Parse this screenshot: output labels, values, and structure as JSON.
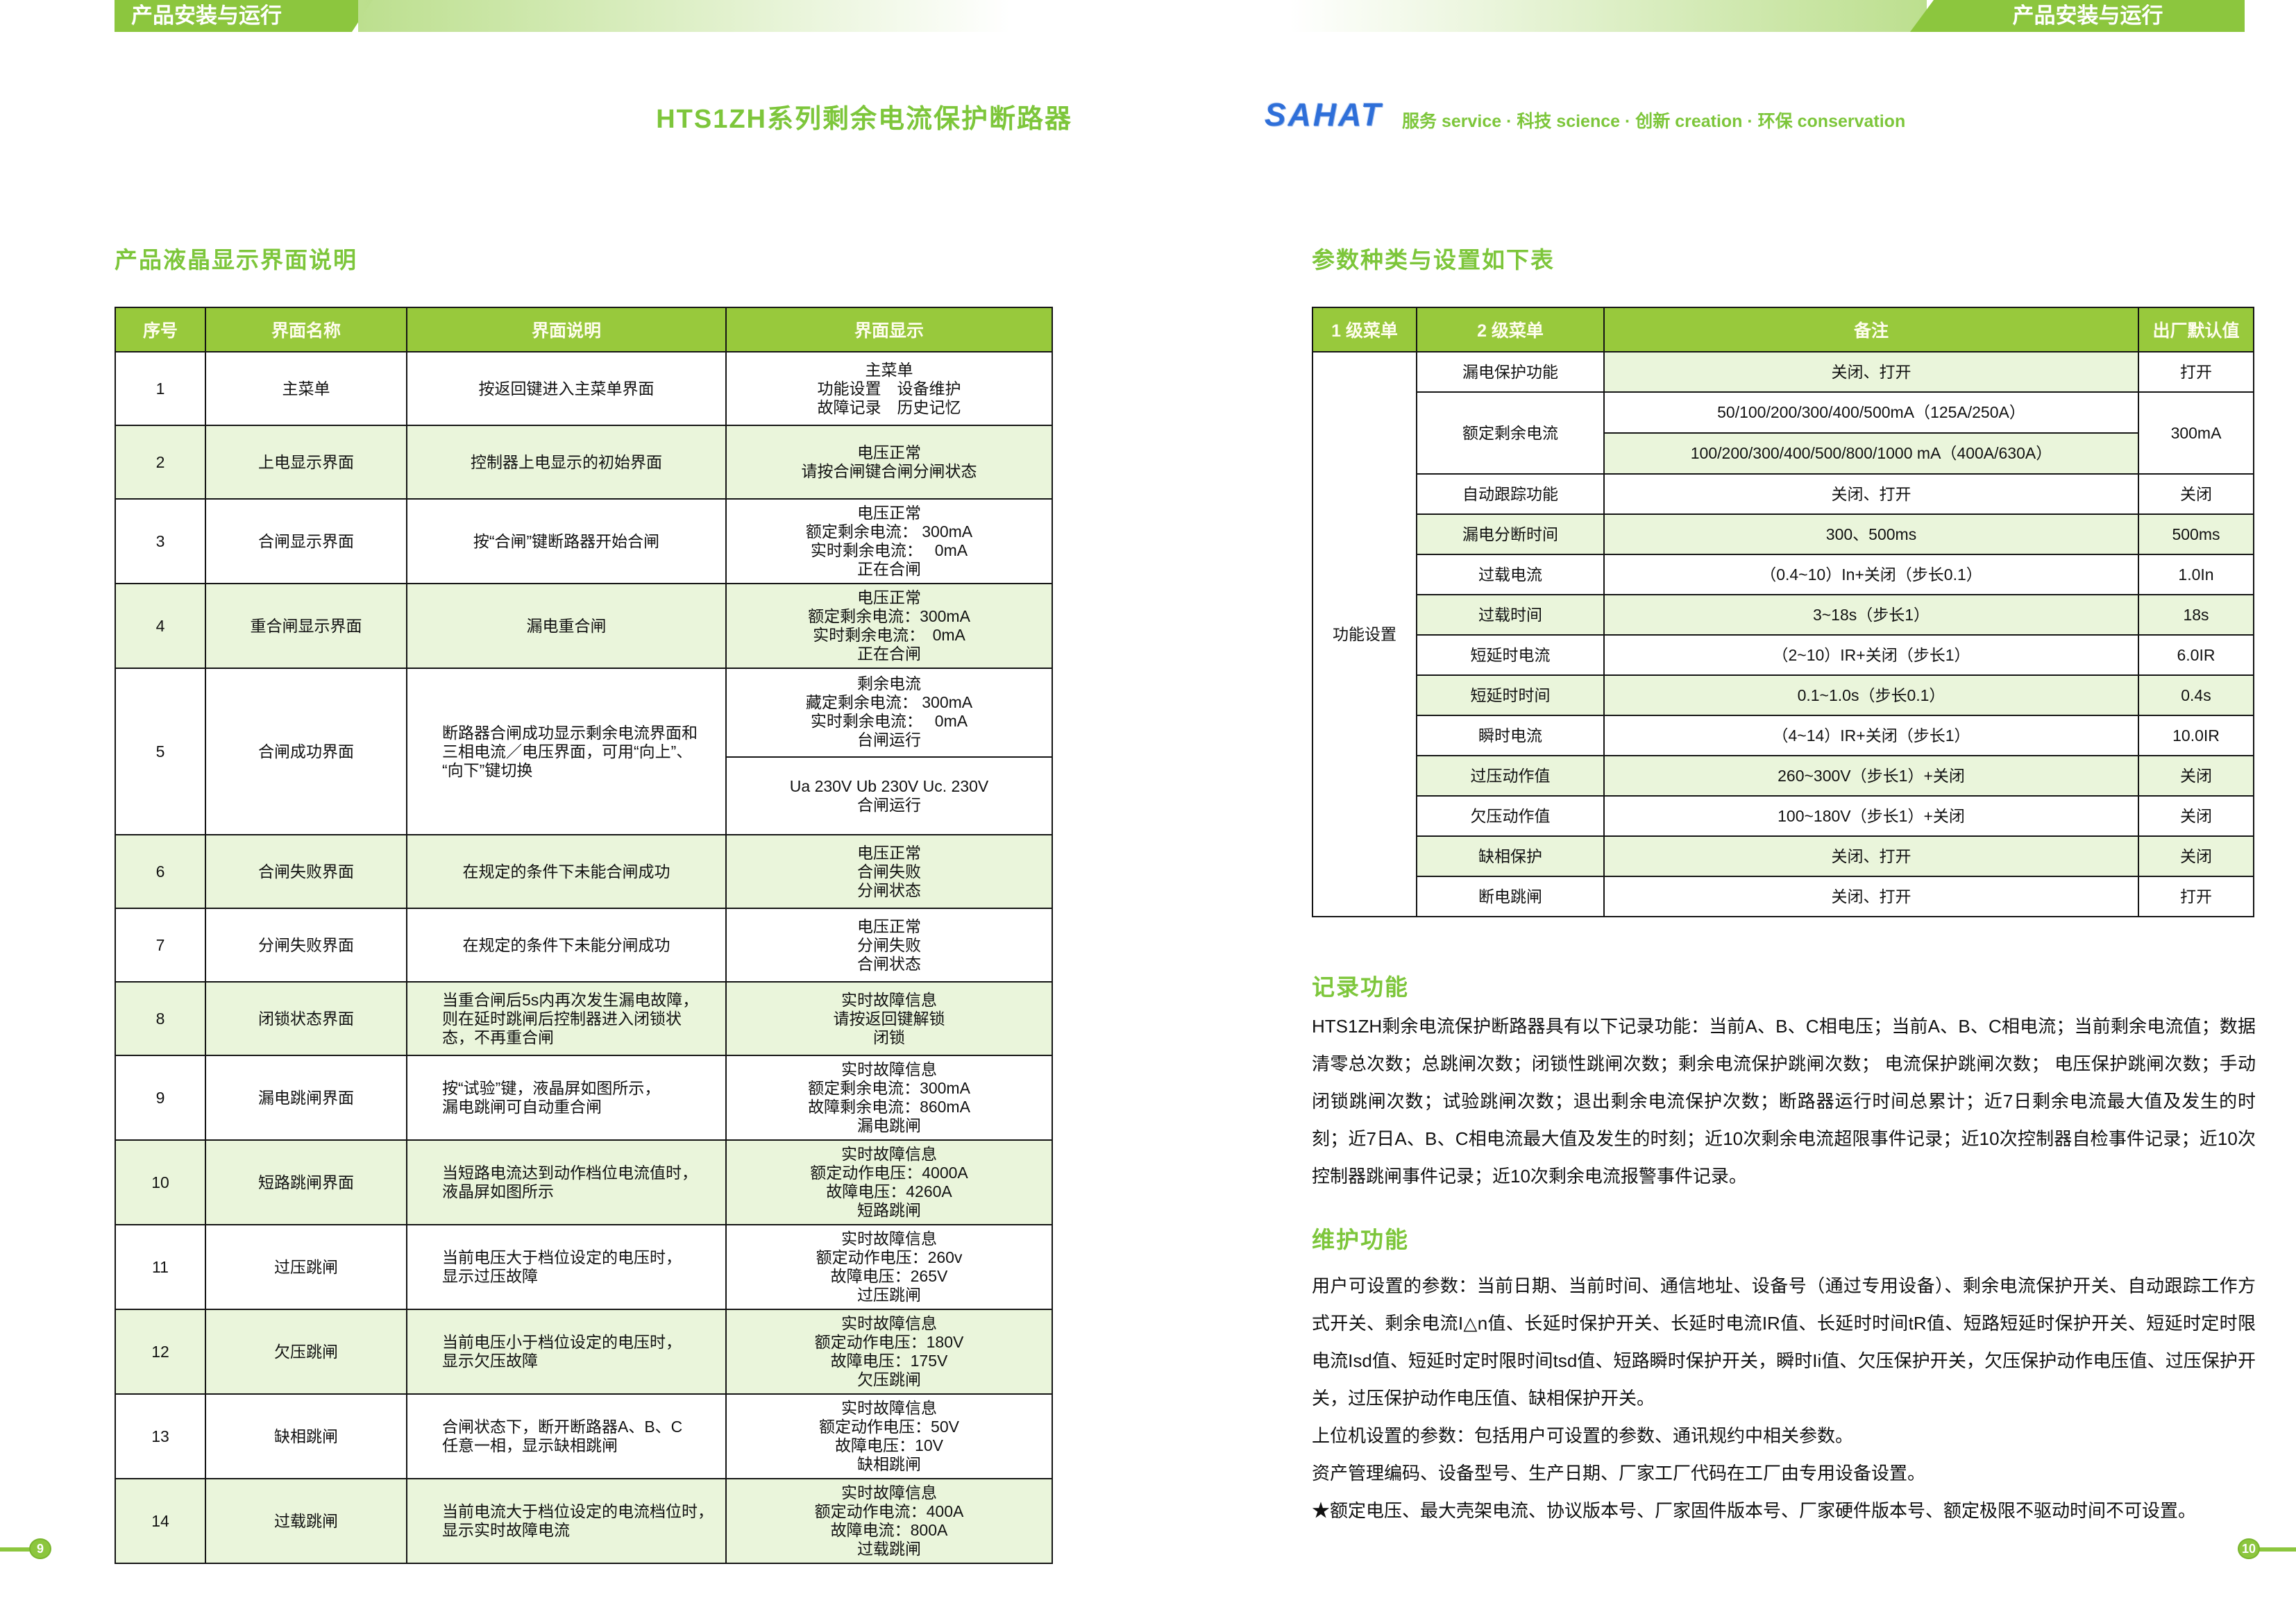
{
  "header": {
    "doc_title": "HTS1ZH系列剩余电流保护断路器",
    "left_banner": "产品安装与运行",
    "right_banner": "产品安装与运行",
    "logo": "SAHAT",
    "tagline": "服务 service · 科技 science · 创新 creation · 环保 conservation"
  },
  "left_section": {
    "title": "产品液晶显示界面说明",
    "columns": [
      "序号",
      "界面名称",
      "界面说明",
      "界面显示"
    ],
    "rows": [
      {
        "num": "1",
        "name": "主菜单",
        "desc": [
          "按返回键进入主菜单界面"
        ],
        "display": [
          "主菜单",
          "功能设置　设备维护",
          "故障记录　历史记忆"
        ]
      },
      {
        "num": "2",
        "name": "上电显示界面",
        "desc": [
          "控制器上电显示的初始界面"
        ],
        "display": [
          "电压正常",
          "请按合闸键合闸分闸状态"
        ]
      },
      {
        "num": "3",
        "name": "合闸显示界面",
        "desc": [
          "按“合闸”键断路器开始合闸"
        ],
        "display": [
          "电压正常",
          "额定剩余电流： 300mA",
          "实时剩余电流：　 0mA",
          "正在合闸"
        ]
      },
      {
        "num": "4",
        "name": "重合闸显示界面",
        "desc": [
          "漏电重合闸"
        ],
        "display": [
          "电压正常",
          "额定剩余电流：300mA",
          "实时剩余电流：　0mA",
          "正在合闸"
        ]
      },
      {
        "num": "5",
        "name": "合闸成功界面",
        "desc": [
          "断路器合闸成功显示剩余电流界面和",
          "三相电流／电压界面，可用“向上”、",
          "“向下”键切换"
        ],
        "display_split": {
          "a": [
            "剩余电流",
            "藏定剩余电流： 300mA",
            "实时剩余电流：　 0mA",
            "台闸运行"
          ],
          "b": [
            "Ua 230V Ub 230V Uc.  230V",
            "合闸运行"
          ]
        }
      },
      {
        "num": "6",
        "name": "合闸失败界面",
        "desc": [
          "在规定的条件下未能合闸成功"
        ],
        "display": [
          "电压正常",
          "合闸失败",
          "分闸状态"
        ]
      },
      {
        "num": "7",
        "name": "分闸失败界面",
        "desc": [
          "在规定的条件下未能分闸成功"
        ],
        "display": [
          "电压正常",
          "分闸失败",
          "合闸状态"
        ]
      },
      {
        "num": "8",
        "name": "闭锁状态界面",
        "desc": [
          "当重合闸后5s内再次发生漏电故障，",
          "则在延时跳闸后控制器进入闭锁状",
          "态，不再重合闸"
        ],
        "display": [
          "实时故障信息",
          "请按返回键解锁",
          "闭锁"
        ]
      },
      {
        "num": "9",
        "name": "漏电跳闸界面",
        "desc": [
          "按“试验”键，液晶屏如图所示，",
          "漏电跳闸可自动重合闸"
        ],
        "display": [
          "实时故障信息",
          "额定剩余电流：300mA",
          "故障剩余电流：860mA",
          "漏电跳闸"
        ]
      },
      {
        "num": "10",
        "name": "短路跳闸界面",
        "desc": [
          "当短路电流达到动作档位电流值时，",
          "液晶屏如图所示"
        ],
        "display": [
          "实时故障信息",
          "额定动作电压：4000A",
          "故障电压：4260A",
          "短路跳闸"
        ]
      },
      {
        "num": "11",
        "name": "过压跳闸",
        "desc": [
          "当前电压大于档位设定的电压时，",
          "显示过压故障"
        ],
        "display": [
          "实时故障信息",
          "额定动作电压：260v",
          "故障电压：265V",
          "过压跳闸"
        ]
      },
      {
        "num": "12",
        "name": "欠压跳闸",
        "desc": [
          "当前电压小于档位设定的电压时，",
          "显示欠压故障"
        ],
        "display": [
          "实时故障信息",
          "额定动作电压：180V",
          "故障电压：175V",
          "欠压跳闸"
        ]
      },
      {
        "num": "13",
        "name": "缺相跳闸",
        "desc": [
          "合闸状态下，断开断路器A、B、C",
          "任意一相，显示缺相跳闸"
        ],
        "display": [
          "实时故障信息",
          "额定动作电压：50V",
          "故障电压：10V",
          "缺相跳闸"
        ]
      },
      {
        "num": "14",
        "name": "过载跳闸",
        "desc": [
          "当前电流大于档位设定的电流档位时，",
          "显示实时故障电流"
        ],
        "display": [
          "实时故障信息",
          "额定动作电流：400A",
          "故障电流：800A",
          "过载跳闸"
        ]
      }
    ]
  },
  "right_section": {
    "title": "参数种类与设置如下表",
    "columns": [
      "1 级菜单",
      "2 级菜单",
      "备注",
      "出厂默认值"
    ],
    "level1_label": "功能设置",
    "rows": [
      {
        "name": "漏电保护功能",
        "remark": "关闭、打开",
        "default": "打开"
      },
      {
        "name": "额定剩余电流",
        "remarks": [
          "50/100/200/300/400/500mA（125A/250A）",
          "100/200/300/400/500/800/1000 mA（400A/630A）"
        ],
        "default": "300mA"
      },
      {
        "name": "自动跟踪功能",
        "remark": "关闭、打开",
        "default": "关闭"
      },
      {
        "name": "漏电分断时间",
        "remark": "300、500ms",
        "default": "500ms"
      },
      {
        "name": "过载电流",
        "remark": "（0.4~10）In+关闭（步长0.1）",
        "default": "1.0In"
      },
      {
        "name": "过载时间",
        "remark": "3~18s（步长1）",
        "default": "18s"
      },
      {
        "name": "短延时电流",
        "remark": "（2~10）IR+关闭（步长1）",
        "default": "6.0IR"
      },
      {
        "name": "短延时时间",
        "remark": "0.1~1.0s（步长0.1）",
        "default": "0.4s"
      },
      {
        "name": "瞬时电流",
        "remark": "（4~14）IR+关闭（步长1）",
        "default": "10.0IR"
      },
      {
        "name": "过压动作值",
        "remark": "260~300V（步长1）+关闭",
        "default": "关闭"
      },
      {
        "name": "欠压动作值",
        "remark": "100~180V（步长1）+关闭",
        "default": "关闭"
      },
      {
        "name": "缺相保护",
        "remark": "关闭、打开",
        "default": "关闭"
      },
      {
        "name": "断电跳闸",
        "remark": "关闭、打开",
        "default": "打开"
      }
    ]
  },
  "records": {
    "title": "记录功能",
    "paragraph": "HTS1ZH剩余电流保护断路器具有以下记录功能：当前A、B、C相电压；当前A、B、C相电流；当前剩余电流值；数据清零总次数；总跳闸次数；闭锁性跳闸次数；剩余电流保护跳闸次数； 电流保护跳闸次数； 电压保护跳闸次数；手动闭锁跳闸次数；试验跳闸次数；退出剩余电流保护次数；断路器运行时间总累计；近7日剩余电流最大值及发生的时刻；近7日A、B、C相电流最大值及发生的时刻；近10次剩余电流超限事件记录；近10次控制器自检事件记录；近10次控制器跳闸事件记录；近10次剩余电流报警事件记录。"
  },
  "maintenance": {
    "title": "维护功能",
    "paragraphs": [
      "用户可设置的参数：当前日期、当前时间、通信地址、设备号（通过专用设备）、剩余电流保护开关、自动跟踪工作方式开关、剩余电流I△n值、长延时保护开关、长延时电流IR值、长延时时间tR值、短路短延时保护开关、短延时定时限电流Isd值、短延时定时限时间tsd值、短路瞬时保护开关，瞬时Ii值、欠压保护开关，欠压保护动作电压值、过压保护开关，过压保护动作电压值、缺相保护开关。",
      "上位机设置的参数：包括用户可设置的参数、通讯规约中相关参数。",
      "资产管理编码、设备型号、生产日期、厂家工厂代码在工厂由专用设备设置。",
      "★额定电压、最大壳架电流、协议版本号、厂家固件版本号、厂家硬件版本号、额定极限不驱动时间不可设置。"
    ]
  },
  "footer": {
    "left_page": "9",
    "right_page": "10"
  },
  "colors": {
    "accent_green": "#8CC63E",
    "table_header_green": "#98C93C",
    "row_green": "#EAF5DB",
    "logo_blue": "#2E6FD9"
  }
}
